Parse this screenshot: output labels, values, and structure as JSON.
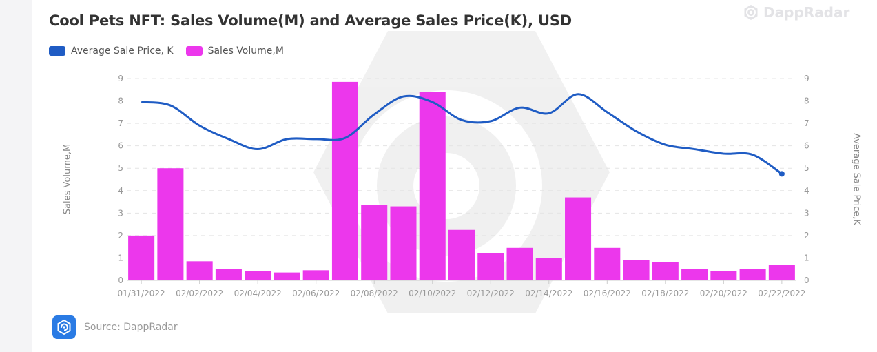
{
  "title": "Cool Pets NFT: Sales Volume(M) and Average Sales Price(K), USD",
  "brand": {
    "name": "DappRadar",
    "logo": "dappradar-logo-icon"
  },
  "source": {
    "prefix": "Source:",
    "link": "DappRadar",
    "logo": "dappradar-logo-icon"
  },
  "colors": {
    "volume": "#ec37ec",
    "price": "#1f5cc4",
    "grid": "#e4e4e4",
    "axis_text": "#999999"
  },
  "chart_data": {
    "type": "bar",
    "title": "Cool Pets NFT: Sales Volume(M) and Average Sales Price(K), USD",
    "x": [
      "01/31/2022",
      "02/01/2022",
      "02/02/2022",
      "02/03/2022",
      "02/04/2022",
      "02/05/2022",
      "02/06/2022",
      "02/07/2022",
      "02/08/2022",
      "02/09/2022",
      "02/10/2022",
      "02/11/2022",
      "02/12/2022",
      "02/13/2022",
      "02/14/2022",
      "02/15/2022",
      "02/16/2022",
      "02/17/2022",
      "02/18/2022",
      "02/19/2022",
      "02/20/2022",
      "02/21/2022",
      "02/22/2022"
    ],
    "x_tick_labels": [
      "01/31/2022",
      "02/02/2022",
      "02/04/2022",
      "02/06/2022",
      "02/08/2022",
      "02/10/2022",
      "02/12/2022",
      "02/14/2022",
      "02/16/2022",
      "02/18/2022",
      "02/20/2022",
      "02/22/2022"
    ],
    "series": [
      {
        "name": "Average Sale Price, K",
        "type": "line",
        "axis": "right",
        "values": [
          7.95,
          7.8,
          6.9,
          6.3,
          5.85,
          6.3,
          6.3,
          6.35,
          7.4,
          8.2,
          7.95,
          7.15,
          7.1,
          7.7,
          7.45,
          8.3,
          7.5,
          6.65,
          6.05,
          5.85,
          5.65,
          5.6,
          4.75
        ]
      },
      {
        "name": "Sales Volume,M",
        "type": "bar",
        "axis": "left",
        "values": [
          2.0,
          5.0,
          0.85,
          0.5,
          0.4,
          0.35,
          0.45,
          8.85,
          3.35,
          3.3,
          8.4,
          2.25,
          1.2,
          1.45,
          1.0,
          3.7,
          1.45,
          0.92,
          0.8,
          0.5,
          0.4,
          0.5,
          0.7
        ]
      }
    ],
    "ylabel": "Sales Volume,M",
    "ylabel_right": "Average Sale Price,K",
    "ylim": [
      0,
      9
    ],
    "ylim_right": [
      0,
      9
    ],
    "yticks": [
      0,
      1,
      2,
      3,
      4,
      5,
      6,
      7,
      8,
      9
    ],
    "grid": true,
    "legend": "top-left"
  }
}
